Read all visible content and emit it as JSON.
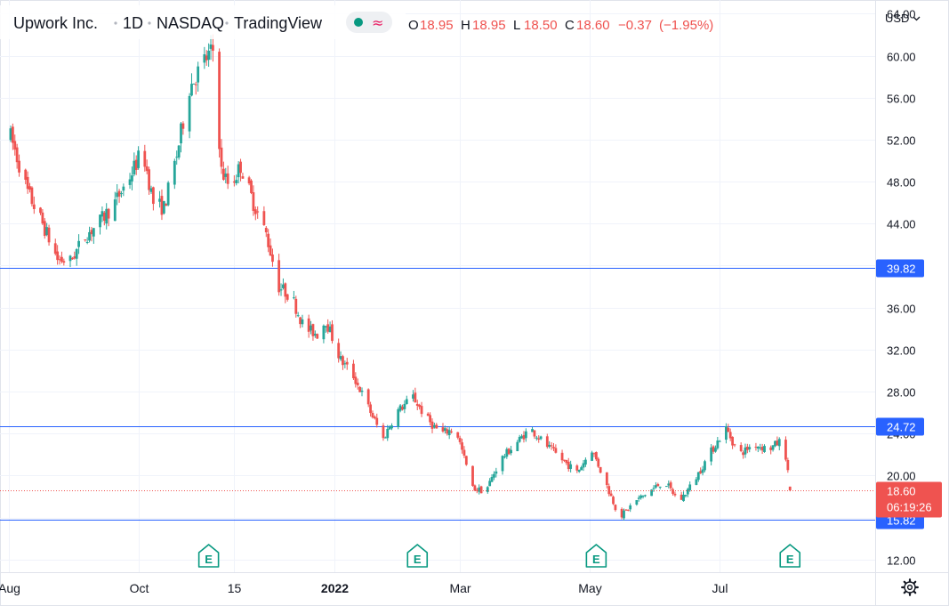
{
  "header": {
    "symbol_name": "Upwork Inc.",
    "interval": "1D",
    "exchange": "NASDAQ",
    "source": "TradingView",
    "currency": "USD",
    "ohlc": {
      "open_label": "O",
      "open": "18.95",
      "high_label": "H",
      "high": "18.95",
      "low_label": "L",
      "low": "18.50",
      "close_label": "C",
      "close": "18.60",
      "change": "−0.37",
      "change_pct": "(−1.95%)"
    }
  },
  "colors": {
    "up": "#26a69a",
    "down": "#ef5350",
    "level_line": "#2962ff",
    "level_label_bg": "#2962ff",
    "price_label_bg": "#ef5350",
    "earnings": "#089981",
    "grid": "#f0f3fa",
    "text": "#131722",
    "axis_border": "#e0e3eb"
  },
  "chart_data": {
    "type": "candlestick",
    "title": "Upwork Inc. · 1D · NASDAQ · TradingView",
    "grid": true,
    "y_axis": {
      "ticks": [
        "64.00",
        "60.00",
        "56.00",
        "52.00",
        "48.00",
        "44.00",
        "40.00",
        "36.00",
        "32.00",
        "28.00",
        "24.00",
        "20.00",
        "16.00",
        "12.00"
      ],
      "ylim": [
        10.8,
        65.3
      ],
      "position": "right"
    },
    "x_axis": {
      "ticks": [
        {
          "label": "Aug",
          "date": "2021-08-01",
          "bold": false
        },
        {
          "label": "Oct",
          "date": "2021-10-01",
          "bold": false
        },
        {
          "label": "15",
          "date": "2021-11-15",
          "bold": false
        },
        {
          "label": "2022",
          "date": "2022-01-01",
          "bold": true
        },
        {
          "label": "Mar",
          "date": "2022-03-01",
          "bold": false
        },
        {
          "label": "May",
          "date": "2022-05-01",
          "bold": false
        },
        {
          "label": "Jul",
          "date": "2022-07-01",
          "bold": false
        }
      ],
      "xlim": [
        "2021-07-28",
        "2022-09-12"
      ]
    },
    "horizontal_levels": [
      {
        "value": 39.82,
        "label": "39.82"
      },
      {
        "value": 24.72,
        "label": "24.72"
      },
      {
        "value": 15.82,
        "label": "15.82"
      }
    ],
    "last_price": {
      "value": 18.6,
      "label": "18.60",
      "countdown": "06:19:26"
    },
    "earnings_events": [
      {
        "date": "2021-11-03",
        "label": "E"
      },
      {
        "date": "2022-02-09",
        "label": "E"
      },
      {
        "date": "2022-05-04",
        "label": "E"
      },
      {
        "date": "2022-08-03",
        "label": "E"
      }
    ],
    "close_path": [
      [
        "2021-08-02",
        52.3
      ],
      [
        "2021-08-10",
        47.0
      ],
      [
        "2021-08-17",
        44.0
      ],
      [
        "2021-08-24",
        40.6
      ],
      [
        "2021-08-30",
        40.4
      ],
      [
        "2021-09-06",
        42.8
      ],
      [
        "2021-09-13",
        44.2
      ],
      [
        "2021-09-20",
        46.0
      ],
      [
        "2021-09-27",
        48.5
      ],
      [
        "2021-10-03",
        51.0
      ],
      [
        "2021-10-08",
        46.0
      ],
      [
        "2021-10-13",
        45.5
      ],
      [
        "2021-10-19",
        50.5
      ],
      [
        "2021-10-25",
        57.0
      ],
      [
        "2021-11-01",
        59.5
      ],
      [
        "2021-11-05",
        60.5
      ],
      [
        "2021-11-09",
        49.0
      ],
      [
        "2021-11-13",
        47.5
      ],
      [
        "2021-11-18",
        49.5
      ],
      [
        "2021-11-24",
        46.0
      ],
      [
        "2021-11-30",
        43.0
      ],
      [
        "2021-12-06",
        38.0
      ],
      [
        "2021-12-12",
        37.0
      ],
      [
        "2021-12-18",
        34.0
      ],
      [
        "2021-12-24",
        33.5
      ],
      [
        "2021-12-28",
        34.8
      ],
      [
        "2022-01-04",
        31.0
      ],
      [
        "2022-01-10",
        29.5
      ],
      [
        "2022-01-17",
        26.5
      ],
      [
        "2022-01-24",
        23.5
      ],
      [
        "2022-01-30",
        26.0
      ],
      [
        "2022-02-07",
        27.5
      ],
      [
        "2022-02-13",
        25.5
      ],
      [
        "2022-02-20",
        24.0
      ],
      [
        "2022-02-27",
        24.5
      ],
      [
        "2022-03-07",
        18.8
      ],
      [
        "2022-03-13",
        18.5
      ],
      [
        "2022-03-20",
        21.5
      ],
      [
        "2022-03-27",
        23.0
      ],
      [
        "2022-04-03",
        24.5
      ],
      [
        "2022-04-10",
        23.0
      ],
      [
        "2022-04-18",
        21.5
      ],
      [
        "2022-04-25",
        20.3
      ],
      [
        "2022-05-02",
        22.5
      ],
      [
        "2022-05-09",
        19.0
      ],
      [
        "2022-05-15",
        16.0
      ],
      [
        "2022-05-22",
        17.5
      ],
      [
        "2022-05-29",
        18.5
      ],
      [
        "2022-06-05",
        19.5
      ],
      [
        "2022-06-12",
        17.5
      ],
      [
        "2022-06-19",
        19.5
      ],
      [
        "2022-06-26",
        22.0
      ],
      [
        "2022-07-04",
        24.5
      ],
      [
        "2022-07-10",
        22.0
      ],
      [
        "2022-07-17",
        23.0
      ],
      [
        "2022-07-24",
        22.5
      ],
      [
        "2022-07-31",
        23.5
      ],
      [
        "2022-08-03",
        18.6
      ]
    ]
  }
}
